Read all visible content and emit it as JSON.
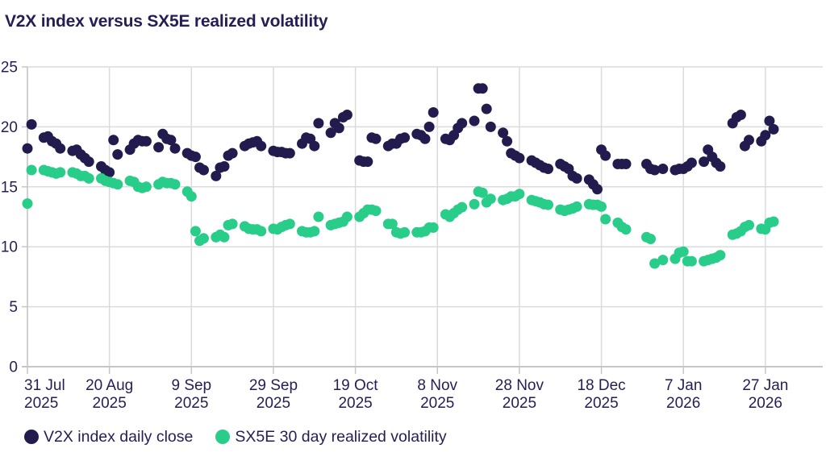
{
  "title": "V2X index versus SX5E realized volatility",
  "colors": {
    "v2x_navy": "#221c4e",
    "sx5e_green": "#29cd8a",
    "text_navy": "#241e55",
    "gridline_gray": "#dbdbdb",
    "axis_gray": "#c6c6c6",
    "background": "#ffffff"
  },
  "chart_data": {
    "type": "scatter",
    "title": "V2X index versus SX5E realized volatility",
    "xlabel": "",
    "ylabel": "",
    "ylim": [
      0,
      25
    ],
    "y_ticks": [
      25,
      20,
      15,
      10,
      5,
      0
    ],
    "grid": true,
    "legend_position": "bottom-left",
    "x_domain_days": [
      0,
      194
    ],
    "x_ticks": [
      {
        "day": 0,
        "line1": "31 Jul",
        "line2": "2025"
      },
      {
        "day": 20,
        "line1": "20 Aug",
        "line2": "2025"
      },
      {
        "day": 40,
        "line1": "9 Sep",
        "line2": "2025"
      },
      {
        "day": 60,
        "line1": "29 Sep",
        "line2": "2025"
      },
      {
        "day": 80,
        "line1": "19 Oct",
        "line2": "2025"
      },
      {
        "day": 100,
        "line1": "8 Nov",
        "line2": "2025"
      },
      {
        "day": 120,
        "line1": "28 Nov",
        "line2": "2025"
      },
      {
        "day": 140,
        "line1": "18 Dec",
        "line2": "2025"
      },
      {
        "day": 160,
        "line1": "7 Jan",
        "line2": "2026"
      },
      {
        "day": 180,
        "line1": "27 Jan",
        "line2": "2026"
      }
    ],
    "series": [
      {
        "name": "V2X index daily close",
        "color": "#221c4e",
        "points": [
          [
            0,
            18.2
          ],
          [
            1,
            20.2
          ],
          [
            4,
            19.1
          ],
          [
            5,
            19.2
          ],
          [
            6,
            18.8
          ],
          [
            7,
            18.6
          ],
          [
            8,
            18.2
          ],
          [
            11,
            18.0
          ],
          [
            12,
            18.1
          ],
          [
            13,
            17.7
          ],
          [
            14,
            17.4
          ],
          [
            15,
            17.1
          ],
          [
            18,
            16.7
          ],
          [
            19,
            16.4
          ],
          [
            20,
            16.2
          ],
          [
            21,
            18.9
          ],
          [
            22,
            17.7
          ],
          [
            25,
            18.1
          ],
          [
            26,
            18.6
          ],
          [
            27,
            18.9
          ],
          [
            28,
            18.8
          ],
          [
            29,
            18.8
          ],
          [
            32,
            18.3
          ],
          [
            33,
            19.4
          ],
          [
            34,
            19.0
          ],
          [
            35,
            18.9
          ],
          [
            36,
            18.2
          ],
          [
            39,
            17.8
          ],
          [
            40,
            17.6
          ],
          [
            41,
            17.5
          ],
          [
            42,
            16.6
          ],
          [
            43,
            16.4
          ],
          [
            46,
            15.9
          ],
          [
            47,
            16.6
          ],
          [
            48,
            16.7
          ],
          [
            49,
            17.6
          ],
          [
            50,
            17.8
          ],
          [
            53,
            18.4
          ],
          [
            54,
            18.6
          ],
          [
            55,
            18.7
          ],
          [
            56,
            18.8
          ],
          [
            57,
            18.4
          ],
          [
            60,
            18.0
          ],
          [
            61,
            17.9
          ],
          [
            62,
            17.9
          ],
          [
            63,
            17.8
          ],
          [
            64,
            17.8
          ],
          [
            67,
            18.6
          ],
          [
            68,
            19.1
          ],
          [
            69,
            19.0
          ],
          [
            70,
            18.4
          ],
          [
            71,
            20.3
          ],
          [
            74,
            19.5
          ],
          [
            75,
            20.3
          ],
          [
            76,
            19.9
          ],
          [
            77,
            20.8
          ],
          [
            78,
            21.0
          ],
          [
            81,
            17.2
          ],
          [
            82,
            17.1
          ],
          [
            83,
            17.1
          ],
          [
            84,
            19.1
          ],
          [
            85,
            19.0
          ],
          [
            88,
            18.4
          ],
          [
            89,
            18.6
          ],
          [
            90,
            18.6
          ],
          [
            91,
            19.0
          ],
          [
            92,
            19.1
          ],
          [
            95,
            19.4
          ],
          [
            96,
            19.3
          ],
          [
            97,
            19.0
          ],
          [
            98,
            20.0
          ],
          [
            99,
            21.2
          ],
          [
            102,
            19.0
          ],
          [
            103,
            18.9
          ],
          [
            104,
            19.3
          ],
          [
            105,
            19.9
          ],
          [
            106,
            20.3
          ],
          [
            109,
            20.5
          ],
          [
            110,
            23.2
          ],
          [
            111,
            23.2
          ],
          [
            112,
            21.5
          ],
          [
            113,
            20.0
          ],
          [
            116,
            19.5
          ],
          [
            117,
            18.8
          ],
          [
            118,
            17.8
          ],
          [
            119,
            17.6
          ],
          [
            120,
            17.4
          ],
          [
            123,
            17.2
          ],
          [
            124,
            17.0
          ],
          [
            125,
            16.8
          ],
          [
            126,
            16.6
          ],
          [
            127,
            16.5
          ],
          [
            130,
            16.9
          ],
          [
            131,
            16.7
          ],
          [
            132,
            16.5
          ],
          [
            133,
            15.9
          ],
          [
            134,
            15.7
          ],
          [
            137,
            15.6
          ],
          [
            138,
            15.2
          ],
          [
            139,
            14.8
          ],
          [
            140,
            18.1
          ],
          [
            141,
            17.6
          ],
          [
            144,
            16.9
          ],
          [
            145,
            16.9
          ],
          [
            146,
            16.9
          ],
          [
            151,
            16.9
          ],
          [
            152,
            16.5
          ],
          [
            153,
            16.4
          ],
          [
            155,
            16.5
          ],
          [
            158,
            16.4
          ],
          [
            159,
            16.5
          ],
          [
            160,
            16.5
          ],
          [
            161,
            16.7
          ],
          [
            162,
            17.0
          ],
          [
            165,
            17.1
          ],
          [
            166,
            18.1
          ],
          [
            167,
            17.5
          ],
          [
            168,
            17.0
          ],
          [
            169,
            16.7
          ],
          [
            172,
            20.3
          ],
          [
            173,
            20.8
          ],
          [
            174,
            21.0
          ],
          [
            175,
            18.4
          ],
          [
            176,
            18.9
          ],
          [
            179,
            18.8
          ],
          [
            180,
            19.3
          ],
          [
            181,
            20.5
          ],
          [
            182,
            19.8
          ]
        ]
      },
      {
        "name": "SX5E 30 day realized volatility",
        "color": "#29cd8a",
        "points": [
          [
            0,
            13.6
          ],
          [
            1,
            16.4
          ],
          [
            4,
            16.4
          ],
          [
            5,
            16.3
          ],
          [
            6,
            16.2
          ],
          [
            7,
            16.1
          ],
          [
            8,
            16.2
          ],
          [
            11,
            16.2
          ],
          [
            12,
            16.1
          ],
          [
            13,
            15.9
          ],
          [
            14,
            15.9
          ],
          [
            15,
            15.7
          ],
          [
            18,
            15.7
          ],
          [
            19,
            15.5
          ],
          [
            20,
            15.4
          ],
          [
            21,
            15.3
          ],
          [
            22,
            15.2
          ],
          [
            25,
            15.5
          ],
          [
            26,
            15.4
          ],
          [
            27,
            15.0
          ],
          [
            28,
            14.9
          ],
          [
            29,
            15.0
          ],
          [
            32,
            15.2
          ],
          [
            33,
            15.4
          ],
          [
            34,
            15.3
          ],
          [
            35,
            15.3
          ],
          [
            36,
            15.2
          ],
          [
            39,
            14.6
          ],
          [
            40,
            14.2
          ],
          [
            41,
            11.3
          ],
          [
            42,
            10.5
          ],
          [
            43,
            10.7
          ],
          [
            46,
            10.8
          ],
          [
            47,
            11.0
          ],
          [
            48,
            10.8
          ],
          [
            49,
            11.8
          ],
          [
            50,
            11.9
          ],
          [
            53,
            11.7
          ],
          [
            54,
            11.5
          ],
          [
            55,
            11.45
          ],
          [
            56,
            11.45
          ],
          [
            57,
            11.3
          ],
          [
            60,
            11.5
          ],
          [
            61,
            11.45
          ],
          [
            62,
            11.65
          ],
          [
            63,
            11.8
          ],
          [
            64,
            11.9
          ],
          [
            67,
            11.3
          ],
          [
            68,
            11.2
          ],
          [
            69,
            11.2
          ],
          [
            70,
            11.3
          ],
          [
            71,
            12.5
          ],
          [
            74,
            11.8
          ],
          [
            75,
            11.9
          ],
          [
            76,
            12.0
          ],
          [
            77,
            12.1
          ],
          [
            78,
            12.5
          ],
          [
            81,
            12.5
          ],
          [
            82,
            12.8
          ],
          [
            83,
            13.1
          ],
          [
            84,
            13.1
          ],
          [
            85,
            13.0
          ],
          [
            88,
            11.9
          ],
          [
            89,
            11.9
          ],
          [
            90,
            11.2
          ],
          [
            91,
            11.1
          ],
          [
            92,
            11.2
          ],
          [
            95,
            11.2
          ],
          [
            96,
            11.2
          ],
          [
            97,
            11.3
          ],
          [
            98,
            11.6
          ],
          [
            99,
            11.6
          ],
          [
            102,
            12.7
          ],
          [
            103,
            12.5
          ],
          [
            104,
            12.8
          ],
          [
            105,
            13.1
          ],
          [
            106,
            13.3
          ],
          [
            109,
            13.55
          ],
          [
            110,
            14.6
          ],
          [
            111,
            14.5
          ],
          [
            112,
            13.7
          ],
          [
            113,
            14.0
          ],
          [
            116,
            13.9
          ],
          [
            117,
            14.0
          ],
          [
            118,
            14.2
          ],
          [
            119,
            14.2
          ],
          [
            120,
            14.4
          ],
          [
            123,
            13.9
          ],
          [
            124,
            13.8
          ],
          [
            125,
            13.7
          ],
          [
            126,
            13.55
          ],
          [
            127,
            13.5
          ],
          [
            130,
            13.1
          ],
          [
            131,
            13.0
          ],
          [
            132,
            13.1
          ],
          [
            133,
            13.2
          ],
          [
            134,
            13.35
          ],
          [
            137,
            13.55
          ],
          [
            138,
            13.5
          ],
          [
            139,
            13.5
          ],
          [
            140,
            13.35
          ],
          [
            141,
            12.3
          ],
          [
            144,
            12.0
          ],
          [
            145,
            11.65
          ],
          [
            146,
            11.45
          ],
          [
            151,
            10.8
          ],
          [
            152,
            10.65
          ],
          [
            153,
            8.6
          ],
          [
            155,
            8.9
          ],
          [
            158,
            9.0
          ],
          [
            159,
            9.5
          ],
          [
            160,
            9.6
          ],
          [
            161,
            8.8
          ],
          [
            162,
            8.8
          ],
          [
            165,
            8.8
          ],
          [
            166,
            8.9
          ],
          [
            167,
            9.0
          ],
          [
            168,
            9.1
          ],
          [
            169,
            9.3
          ],
          [
            172,
            11.0
          ],
          [
            173,
            11.1
          ],
          [
            174,
            11.3
          ],
          [
            175,
            11.65
          ],
          [
            176,
            11.8
          ],
          [
            179,
            11.5
          ],
          [
            180,
            11.45
          ],
          [
            181,
            12.0
          ],
          [
            182,
            12.1
          ]
        ]
      }
    ]
  }
}
